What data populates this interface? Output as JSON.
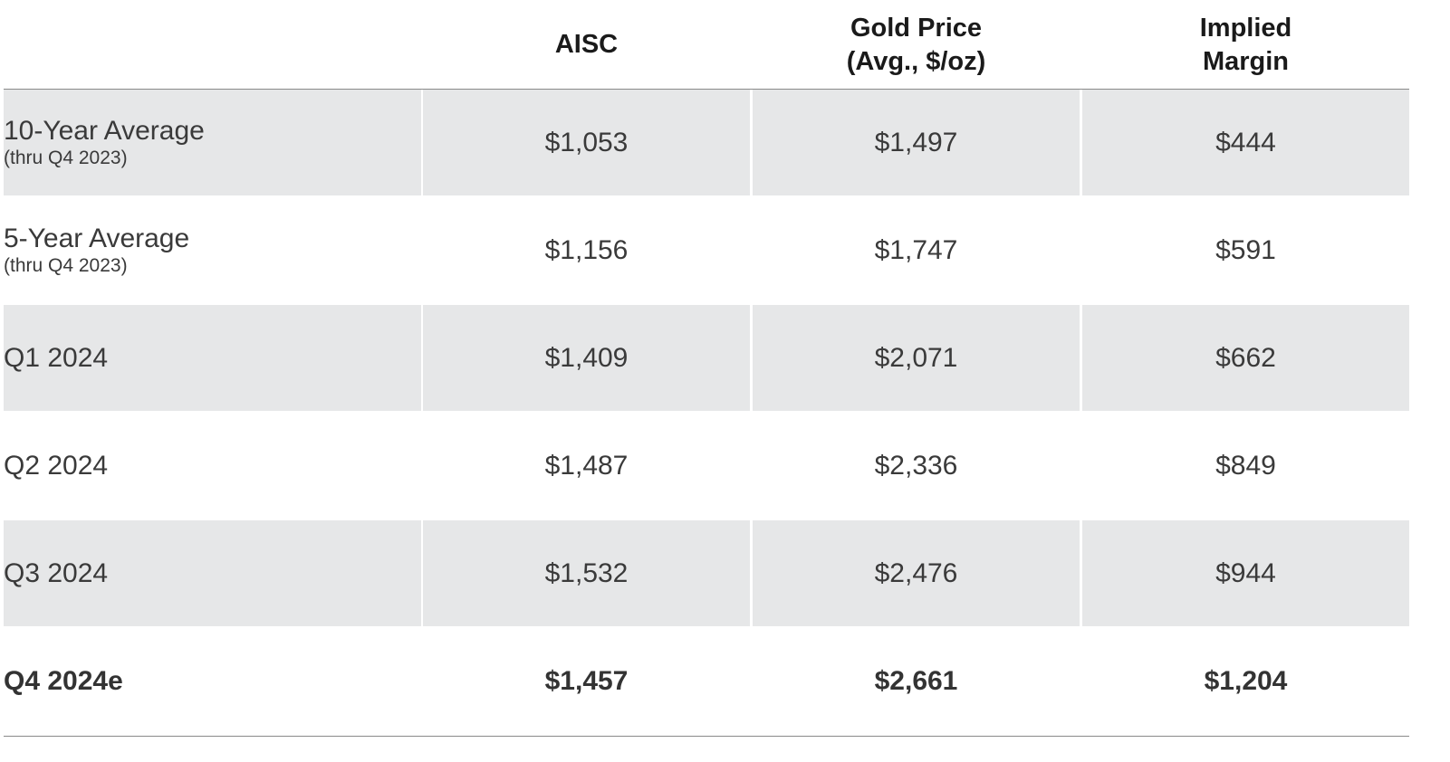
{
  "columns": {
    "c0": "",
    "c1": "AISC",
    "c2": "Gold Price\n(Avg., $/oz)",
    "c3": "Implied\nMargin"
  },
  "rows": [
    {
      "label": "10-Year Average",
      "sublabel": "(thru Q4 2023)",
      "aisc": "$1,053",
      "gold_price": "$1,497",
      "margin": "$444",
      "shaded": true,
      "bold": false
    },
    {
      "label": "5-Year Average",
      "sublabel": "(thru Q4 2023)",
      "aisc": "$1,156",
      "gold_price": "$1,747",
      "margin": "$591",
      "shaded": false,
      "bold": false
    },
    {
      "label": "Q1 2024",
      "sublabel": "",
      "aisc": "$1,409",
      "gold_price": "$2,071",
      "margin": "$662",
      "shaded": true,
      "bold": false
    },
    {
      "label": "Q2 2024",
      "sublabel": "",
      "aisc": "$1,487",
      "gold_price": "$2,336",
      "margin": "$849",
      "shaded": false,
      "bold": false
    },
    {
      "label": "Q3 2024",
      "sublabel": "",
      "aisc": "$1,532",
      "gold_price": "$2,476",
      "margin": "$944",
      "shaded": true,
      "bold": false
    },
    {
      "label": "Q4 2024e",
      "sublabel": "",
      "aisc": "$1,457",
      "gold_price": "$2,661",
      "margin": "$1,204",
      "shaded": false,
      "bold": true
    }
  ],
  "colors": {
    "shade": "#e6e7e8",
    "text": "#3a3a3a",
    "header_text": "#1a1a1a",
    "rule": "#8a8a8a"
  }
}
